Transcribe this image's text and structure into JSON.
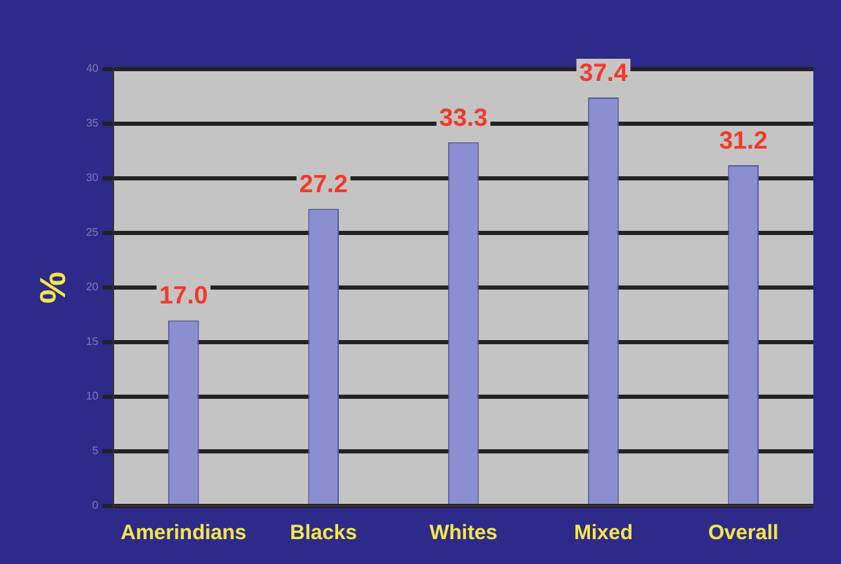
{
  "chart_data": {
    "type": "bar",
    "ylabel": "%",
    "categories": [
      "Amerindians",
      "Blacks",
      "Whites",
      "Mixed",
      "Overall"
    ],
    "values": [
      17.0,
      27.2,
      33.3,
      37.4,
      31.2
    ],
    "color": "#8c8ed2",
    "ylim": [
      0,
      40
    ],
    "yticks": [
      0,
      5,
      10,
      15,
      20,
      25,
      30,
      35,
      40
    ],
    "grid": "y",
    "data_labels": true,
    "value_labels": [
      "17.0",
      "27.2",
      "33.3",
      "37.4",
      "31.2"
    ]
  }
}
